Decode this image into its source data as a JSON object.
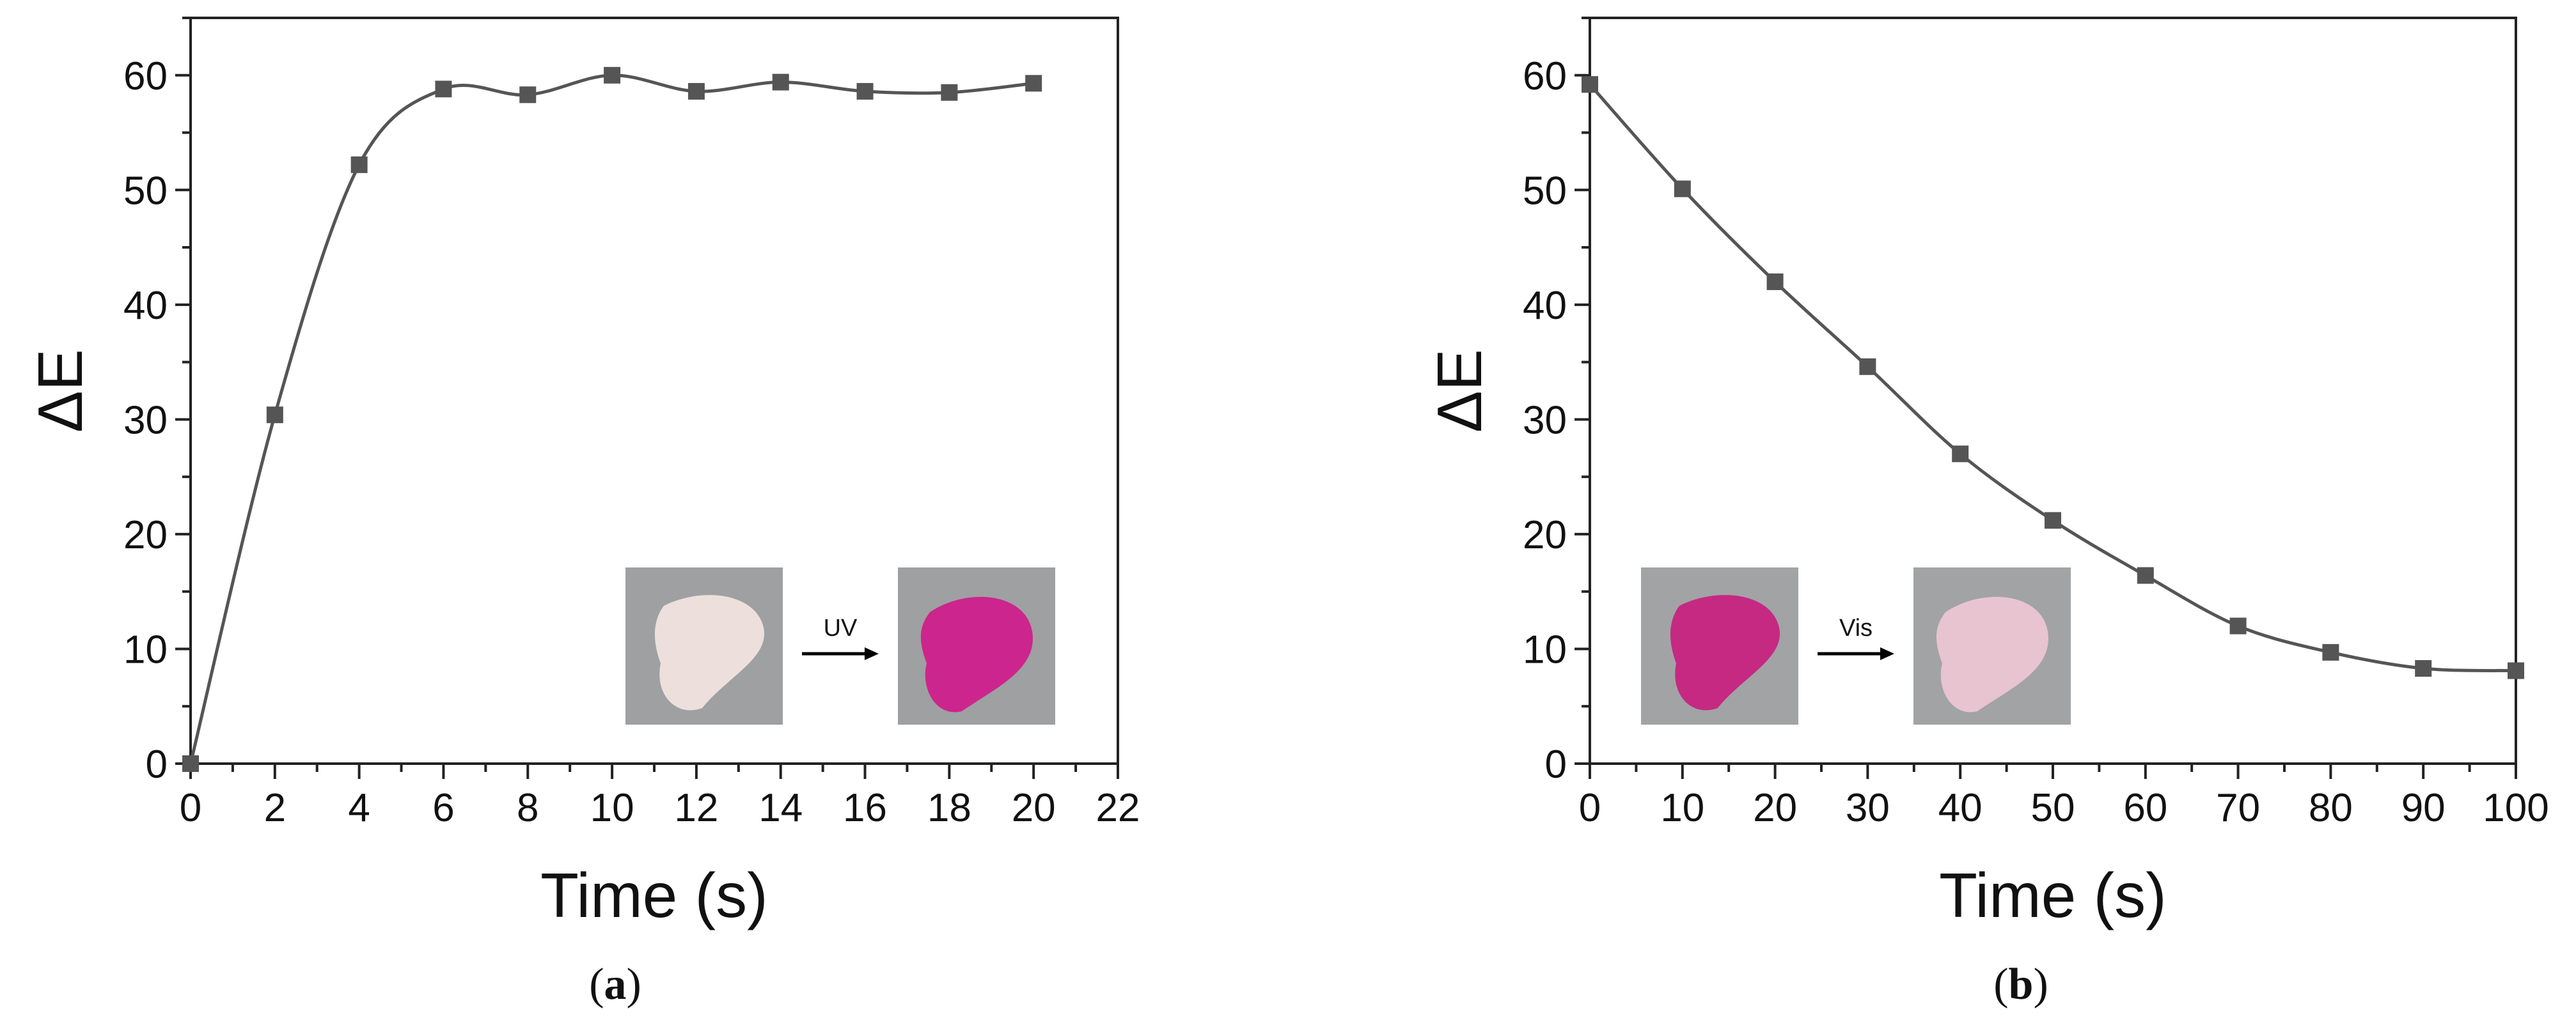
{
  "chart_data": [
    {
      "type": "line",
      "panel": "(a)",
      "panel_letter": "a",
      "title": "",
      "xlabel": "Time (s)",
      "ylabel": "ΔE",
      "xlim": [
        0,
        22
      ],
      "ylim": [
        0,
        65
      ],
      "xticks": [
        0,
        2,
        4,
        6,
        8,
        10,
        12,
        14,
        16,
        18,
        20,
        22
      ],
      "yticks": [
        0,
        10,
        20,
        30,
        40,
        50,
        60
      ],
      "grid": false,
      "series": [
        {
          "name": "ΔE",
          "color": "#555555",
          "x": [
            0,
            2,
            4,
            6,
            8,
            10,
            12,
            14,
            16,
            18,
            20
          ],
          "y": [
            0,
            30.4,
            52.2,
            58.8,
            58.3,
            60.0,
            58.6,
            59.4,
            58.6,
            58.5,
            59.3
          ]
        }
      ],
      "inset": {
        "arrow_label": "UV",
        "before_color": "#f1e3de",
        "after_color": "#cf1f8c",
        "background": "#9ea0a2"
      }
    },
    {
      "type": "line",
      "panel": "(b)",
      "panel_letter": "b",
      "title": "",
      "xlabel": "Time (s)",
      "ylabel": "ΔE",
      "xlim": [
        0,
        100
      ],
      "ylim": [
        0,
        65
      ],
      "xticks": [
        0,
        10,
        20,
        30,
        40,
        50,
        60,
        70,
        80,
        90,
        100
      ],
      "yticks": [
        0,
        10,
        20,
        30,
        40,
        50,
        60
      ],
      "grid": false,
      "series": [
        {
          "name": "ΔE",
          "color": "#555555",
          "x": [
            0,
            10,
            20,
            30,
            40,
            50,
            60,
            70,
            80,
            90,
            100
          ],
          "y": [
            59.2,
            50.1,
            42.0,
            34.6,
            27.0,
            21.2,
            16.4,
            12.0,
            9.7,
            8.3,
            8.1
          ]
        }
      ],
      "inset": {
        "arrow_label": "Vis",
        "before_color": "#c72380",
        "after_color": "#ebc6d2",
        "background": "#a2a3a5"
      }
    }
  ]
}
